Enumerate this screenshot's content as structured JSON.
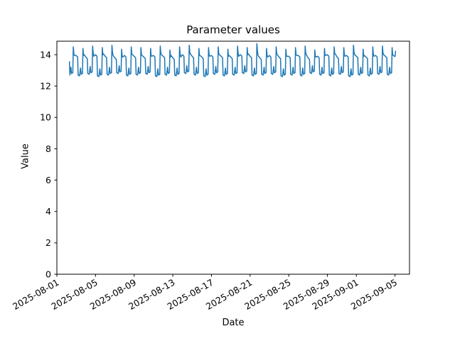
{
  "chart_data": {
    "type": "line",
    "title": "Parameter values",
    "xlabel": "Date",
    "ylabel": "Value",
    "grid": false,
    "legend": null,
    "line_color": "#1f77b4",
    "line_width": 1.5,
    "background_color": "#ffffff",
    "spine_color": "#000000",
    "x_axis_unit": "days since 2025-08-01",
    "xlim_days": [
      0,
      36.5
    ],
    "ylim": [
      0,
      14.86
    ],
    "yticks": [
      0,
      2,
      4,
      6,
      8,
      10,
      12,
      14
    ],
    "xticks": [
      {
        "day": 0,
        "label": "2025-08-01"
      },
      {
        "day": 4,
        "label": "2025-08-05"
      },
      {
        "day": 8,
        "label": "2025-08-09"
      },
      {
        "day": 12,
        "label": "2025-08-13"
      },
      {
        "day": 16,
        "label": "2025-08-17"
      },
      {
        "day": 20,
        "label": "2025-08-21"
      },
      {
        "day": 24,
        "label": "2025-08-25"
      },
      {
        "day": 28,
        "label": "2025-08-29"
      },
      {
        "day": 31,
        "label": "2025-09-01"
      },
      {
        "day": 35,
        "label": "2025-09-05"
      }
    ],
    "series": [
      {
        "name": "parameter",
        "start_t": 1.28,
        "first_t0": 1,
        "pattern": [
          [
            0.0,
            "shoulder",
            -0.05
          ],
          [
            0.15,
            "shoulder",
            -0.15
          ],
          [
            0.2,
            "low",
            0.05
          ],
          [
            0.35,
            "low",
            0.0
          ],
          [
            0.45,
            "low",
            0.5
          ],
          [
            0.52,
            "low",
            0.1
          ],
          [
            0.65,
            "low",
            0.15
          ],
          [
            0.7,
            "peak",
            0.0
          ],
          [
            0.76,
            "peak",
            -0.45
          ],
          [
            0.82,
            "shoulder",
            0.0
          ]
        ],
        "prefix_points": [
          [
            1.3,
            13.55
          ]
        ],
        "suffix_points": [
          [
            35.0,
            13.88
          ],
          [
            35.06,
            14.22
          ]
        ],
        "days": [
          {
            "date": "2025-08-02",
            "peak": 14.5,
            "low": 12.7,
            "shoulder": 13.95
          },
          {
            "date": "2025-08-03",
            "peak": 14.4,
            "low": 12.65,
            "shoulder": 14.0
          },
          {
            "date": "2025-08-04",
            "peak": 14.55,
            "low": 12.75,
            "shoulder": 13.9
          },
          {
            "date": "2025-08-05",
            "peak": 14.45,
            "low": 12.6,
            "shoulder": 14.05
          },
          {
            "date": "2025-08-06",
            "peak": 14.6,
            "low": 12.7,
            "shoulder": 13.95
          },
          {
            "date": "2025-08-07",
            "peak": 14.35,
            "low": 12.8,
            "shoulder": 13.85
          },
          {
            "date": "2025-08-08",
            "peak": 14.5,
            "low": 12.65,
            "shoulder": 14.0
          },
          {
            "date": "2025-08-09",
            "peak": 14.45,
            "low": 12.7,
            "shoulder": 13.95
          },
          {
            "date": "2025-08-10",
            "peak": 14.4,
            "low": 12.75,
            "shoulder": 13.9
          },
          {
            "date": "2025-08-11",
            "peak": 14.55,
            "low": 12.6,
            "shoulder": 14.0
          },
          {
            "date": "2025-08-12",
            "peak": 14.3,
            "low": 12.7,
            "shoulder": 13.95
          },
          {
            "date": "2025-08-13",
            "peak": 14.5,
            "low": 12.65,
            "shoulder": 13.85
          },
          {
            "date": "2025-08-14",
            "peak": 14.6,
            "low": 12.8,
            "shoulder": 14.05
          },
          {
            "date": "2025-08-15",
            "peak": 14.4,
            "low": 12.7,
            "shoulder": 13.95
          },
          {
            "date": "2025-08-16",
            "peak": 14.45,
            "low": 12.6,
            "shoulder": 13.9
          },
          {
            "date": "2025-08-17",
            "peak": 14.5,
            "low": 12.75,
            "shoulder": 14.0
          },
          {
            "date": "2025-08-18",
            "peak": 14.35,
            "low": 12.65,
            "shoulder": 13.95
          },
          {
            "date": "2025-08-19",
            "peak": 14.55,
            "low": 12.7,
            "shoulder": 13.9
          },
          {
            "date": "2025-08-20",
            "peak": 14.45,
            "low": 12.8,
            "shoulder": 14.05
          },
          {
            "date": "2025-08-21",
            "peak": 14.7,
            "low": 12.65,
            "shoulder": 13.95
          },
          {
            "date": "2025-08-22",
            "peak": 14.4,
            "low": 12.7,
            "shoulder": 13.85
          },
          {
            "date": "2025-08-23",
            "peak": 14.5,
            "low": 12.75,
            "shoulder": 14.0
          },
          {
            "date": "2025-08-24",
            "peak": 14.35,
            "low": 12.6,
            "shoulder": 13.9
          },
          {
            "date": "2025-08-25",
            "peak": 14.45,
            "low": 12.7,
            "shoulder": 13.95
          },
          {
            "date": "2025-08-26",
            "peak": 14.55,
            "low": 12.65,
            "shoulder": 14.0
          },
          {
            "date": "2025-08-27",
            "peak": 14.3,
            "low": 12.8,
            "shoulder": 13.85
          },
          {
            "date": "2025-08-28",
            "peak": 14.4,
            "low": 12.7,
            "shoulder": 13.95
          },
          {
            "date": "2025-08-29",
            "peak": 14.5,
            "low": 12.65,
            "shoulder": 14.05
          },
          {
            "date": "2025-08-30",
            "peak": 14.45,
            "low": 12.75,
            "shoulder": 13.9
          },
          {
            "date": "2025-08-31",
            "peak": 14.6,
            "low": 12.6,
            "shoulder": 14.0
          },
          {
            "date": "2025-09-01",
            "peak": 14.35,
            "low": 12.7,
            "shoulder": 13.95
          },
          {
            "date": "2025-09-02",
            "peak": 14.5,
            "low": 12.65,
            "shoulder": 13.9
          },
          {
            "date": "2025-09-03",
            "peak": 14.55,
            "low": 12.75,
            "shoulder": 14.0
          },
          {
            "date": "2025-09-04",
            "peak": 14.45,
            "low": 12.7,
            "shoulder": 13.95
          }
        ]
      }
    ]
  }
}
